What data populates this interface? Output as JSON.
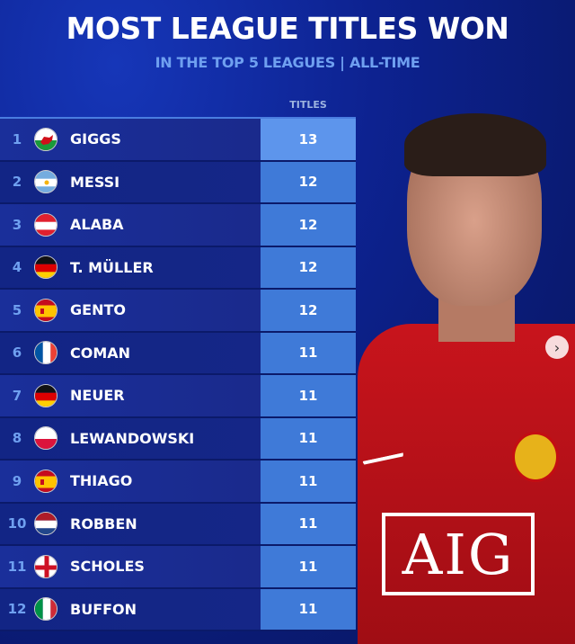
{
  "header": {
    "title": "MOST LEAGUE TITLES WON",
    "subtitle": "IN THE TOP 5 LEAGUES | ALL-TIME"
  },
  "chart_data": {
    "type": "table",
    "title": "MOST LEAGUE TITLES WON",
    "subtitle": "IN THE TOP 5 LEAGUES | ALL-TIME",
    "columns": [
      "",
      "",
      "",
      "TITLES"
    ],
    "rows": [
      {
        "rank": "1",
        "flag": "wales",
        "name": "GIGGS",
        "titles": "13"
      },
      {
        "rank": "2",
        "flag": "argentina",
        "name": "MESSI",
        "titles": "12"
      },
      {
        "rank": "3",
        "flag": "austria",
        "name": "ALABA",
        "titles": "12"
      },
      {
        "rank": "4",
        "flag": "germany",
        "name": "T. MÜLLER",
        "titles": "12"
      },
      {
        "rank": "5",
        "flag": "spain",
        "name": "GENTO",
        "titles": "12"
      },
      {
        "rank": "6",
        "flag": "france",
        "name": "COMAN",
        "titles": "11"
      },
      {
        "rank": "7",
        "flag": "germany",
        "name": "NEUER",
        "titles": "11"
      },
      {
        "rank": "8",
        "flag": "poland",
        "name": "LEWANDOWSKI",
        "titles": "11"
      },
      {
        "rank": "9",
        "flag": "spain",
        "name": "THIAGO",
        "titles": "11"
      },
      {
        "rank": "10",
        "flag": "netherlands",
        "name": "ROBBEN",
        "titles": "11"
      },
      {
        "rank": "11",
        "flag": "england",
        "name": "SCHOLES",
        "titles": "11"
      },
      {
        "rank": "12",
        "flag": "italy",
        "name": "BUFFON",
        "titles": "11"
      }
    ]
  },
  "photo": {
    "sponsor": "AIG"
  },
  "nav": {
    "next_icon": "chevron-right-icon",
    "next_glyph": "›"
  },
  "colors": {
    "background": "#0d2290",
    "accent": "#6fa0f0",
    "value_cell": "#3f7ad8",
    "shirt": "#c8141c"
  }
}
